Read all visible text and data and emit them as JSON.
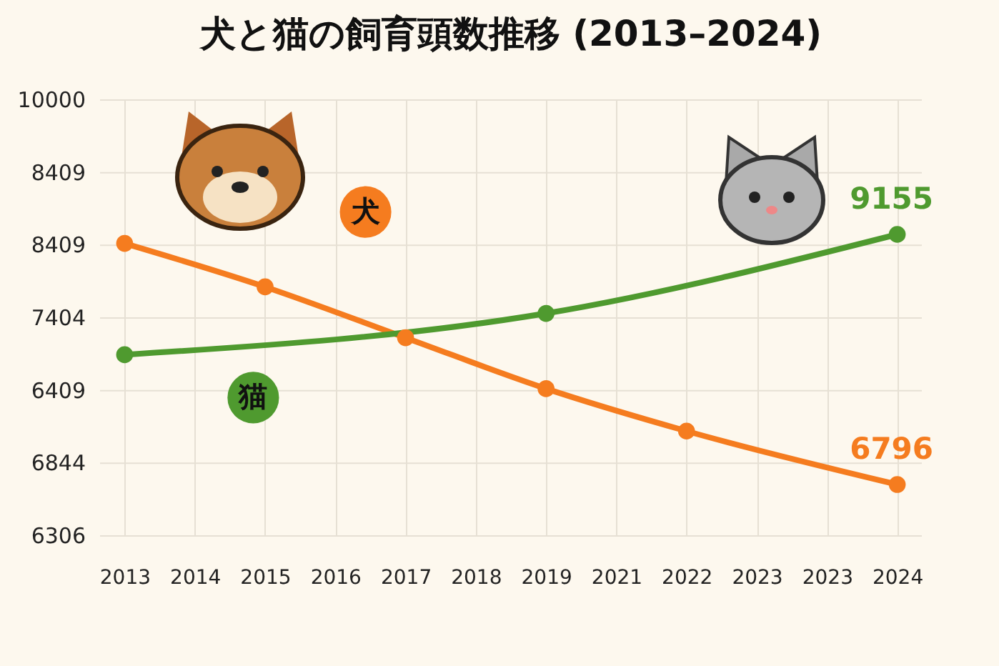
{
  "chart_data": {
    "type": "line",
    "title": "犬と猫の飼育頭数推移 (2013–2024)",
    "categories": [
      "2013",
      "2014",
      "2015",
      "2016",
      "2017",
      "2018",
      "2019",
      "2021",
      "2022",
      "2023",
      "2023",
      "2024"
    ],
    "ylim": [
      6311,
      10422
    ],
    "series": [
      {
        "name": "犬",
        "color": "#f57c1f",
        "values": [
          9070,
          null,
          8660,
          null,
          8180,
          null,
          7700,
          null,
          7300,
          null,
          null,
          6796
        ],
        "value_labels": [
          null,
          null,
          null,
          null,
          null,
          null,
          null,
          null,
          null,
          null,
          null,
          "6796"
        ]
      },
      {
        "name": "猫",
        "color": "#4f9a2f",
        "values": [
          8020,
          null,
          null,
          null,
          null,
          null,
          8410,
          null,
          null,
          null,
          null,
          9155
        ],
        "value_labels": [
          null,
          null,
          null,
          null,
          null,
          null,
          null,
          null,
          null,
          null,
          null,
          "9155"
        ]
      }
    ],
    "annotations": [
      "10000",
      "8409",
      "8409",
      "7404",
      "6409",
      "6844",
      "6306"
    ],
    "grid": true,
    "marker": "circle",
    "legend": false
  }
}
